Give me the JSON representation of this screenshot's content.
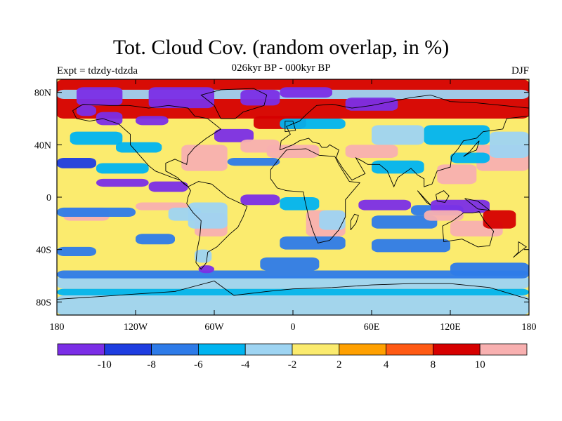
{
  "chart_data": {
    "type": "heatmap",
    "title": "Tot. Cloud Cov. (random overlap, in %)",
    "subtitle": "026kyr BP - 000kyr BP",
    "left_label": "Expt = tdzdy-tdzda",
    "right_label": "DJF",
    "x_ticks": [
      "180",
      "120W",
      "60W",
      "0",
      "60E",
      "120E",
      "180"
    ],
    "y_ticks": [
      "80N",
      "40N",
      "0",
      "40S",
      "80S"
    ],
    "xlim": [
      -180,
      180
    ],
    "ylim": [
      -90,
      90
    ],
    "colorbar": {
      "levels": [
        "-10",
        "-8",
        "-6",
        "-4",
        "-2",
        "2",
        "4",
        "8",
        "10"
      ],
      "colors": [
        "#7b2ee6",
        "#1e3de0",
        "#2e7be8",
        "#00b4f0",
        "#9ed4f2",
        "#fbeb6e",
        "#ffa000",
        "#ff5a14",
        "#d60000",
        "#f8b0b0"
      ]
    }
  }
}
